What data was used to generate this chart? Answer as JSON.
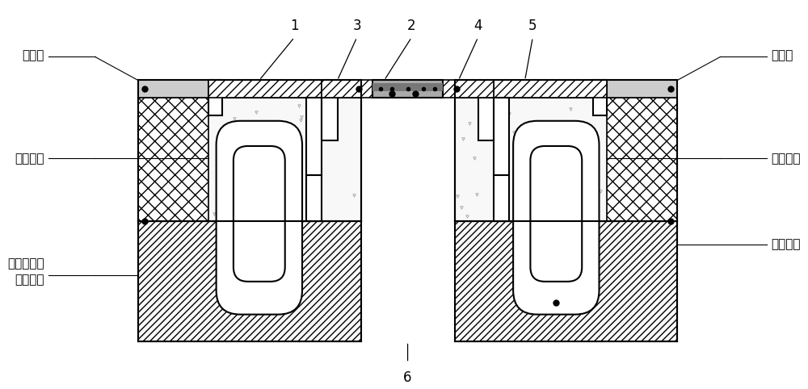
{
  "bg_color": "#ffffff",
  "fig_width": 10.0,
  "fig_height": 4.82,
  "labels": {
    "yu_liu_cao_left": "预留槽",
    "yu_liu_cao_right": "预留槽",
    "qiao_mian_left": "桥面铺装",
    "qiao_mian_right": "桥面铺装",
    "qiao_liang_left": "桥梁端部或\n桥台背墙",
    "qiao_liang_right": "桥梁端部",
    "num1": "1",
    "num2": "2",
    "num3": "3",
    "num4": "4",
    "num5": "5",
    "num6": "6"
  }
}
